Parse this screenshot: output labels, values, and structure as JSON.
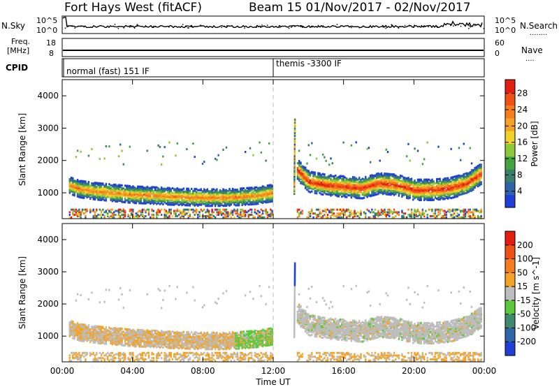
{
  "header": {
    "station": "Fort Hays West (fitACF)",
    "beam_date": "Beam 15  01/Nov/2017 - 02/Nov/2017"
  },
  "noise_panel": {
    "left_label": "N.Sky",
    "left_ticks": [
      "10^5",
      "10^0"
    ],
    "right_ticks": [
      "10^5",
      "10^0"
    ],
    "right_label": "N.Search",
    "right_legend_dots": "........"
  },
  "freq_panel": {
    "left_label_line1": "Freq.",
    "left_label_line2": "[MHz]",
    "left_ticks": [
      "18",
      "8"
    ],
    "right_ticks": [
      "60",
      "0"
    ],
    "right_label": "Nave",
    "right_legend_dots": "...."
  },
  "cpid_panel": {
    "label": "CPID",
    "mode_1": "normal (fast) 151 IF",
    "mode_2": "themis -3300 IF"
  },
  "chart_data": [
    {
      "type": "heatmap",
      "name": "power",
      "ylabel": "Slant Range [km]",
      "xlabel": "",
      "ylim": [
        200,
        4500
      ],
      "yticks": [
        "1000",
        "2000",
        "3000",
        "4000"
      ],
      "xticks": [
        "00:00",
        "04:00",
        "08:00",
        "12:00",
        "16:00",
        "20:00",
        "00:00"
      ],
      "colorbar": {
        "label": "Power [dB]",
        "ticks": [
          "4",
          "8",
          "12",
          "16",
          "20",
          "24",
          "28"
        ],
        "colors": [
          "#1f3fd6",
          "#2f62a8",
          "#3a7f6a",
          "#43a340",
          "#8fc83a",
          "#f1d22a",
          "#f4a326",
          "#f57d1e",
          "#f04f16",
          "#e31d10"
        ]
      },
      "series": [
        {
          "name": "",
          "x": [
            0.3,
            1.0,
            2.0,
            3.0,
            4.0,
            5.0,
            6.0,
            7.0,
            8.0,
            9.0,
            10.0,
            11.0,
            11.9
          ],
          "y": [
            1250,
            1120,
            1050,
            1000,
            950,
            930,
            900,
            880,
            860,
            860,
            880,
            920,
            1000
          ]
        },
        {
          "name": "",
          "x": [
            13.3,
            14.0,
            15.0,
            16.0,
            17.0,
            18.0,
            19.0,
            20.0,
            21.0,
            22.0,
            23.0,
            23.8
          ],
          "y": [
            1750,
            1350,
            1250,
            1200,
            1150,
            1300,
            1250,
            1100,
            1100,
            1150,
            1300,
            1600
          ]
        }
      ]
    },
    {
      "type": "heatmap",
      "name": "velocity",
      "ylabel": "Slant Range [km]",
      "xlabel": "Time UT",
      "ylim": [
        200,
        4500
      ],
      "yticks": [
        "1000",
        "2000",
        "3000",
        "4000"
      ],
      "xticks": [
        "00:00",
        "04:00",
        "08:00",
        "12:00",
        "16:00",
        "20:00",
        "00:00"
      ],
      "colorbar": {
        "label": "Velocity [m s^-1]",
        "ticks": [
          "200",
          "100",
          "50",
          "15",
          "-15",
          "-50",
          "-100",
          "-200"
        ],
        "colors": [
          "#1f3fd6",
          "#2f66a8",
          "#3f8a6c",
          "#5ec83c",
          "#bdbdbd",
          "#f4a326",
          "#f57d1e",
          "#f04f16",
          "#e31d10"
        ]
      }
    }
  ]
}
